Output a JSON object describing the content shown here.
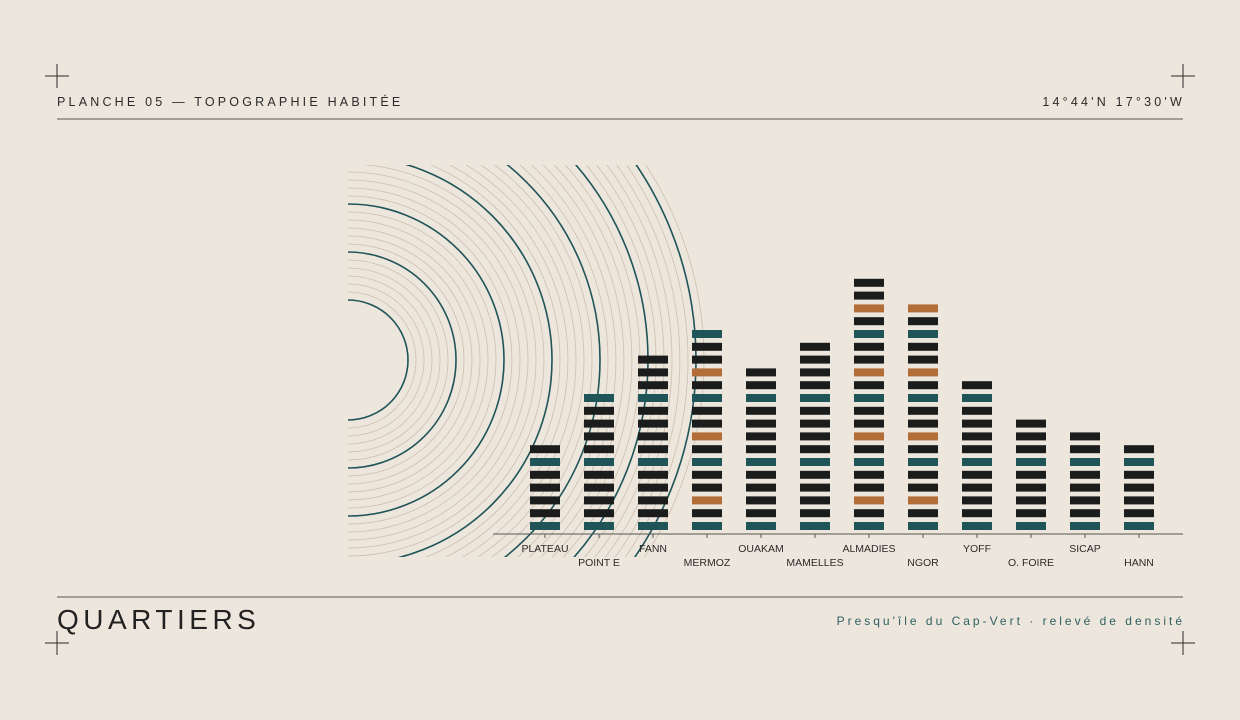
{
  "header": {
    "plate": "PLANCHE 05 — TOPOGRAPHIE HABITÉE",
    "coordinates": "14°44'N  17°30'W"
  },
  "footer": {
    "title": "QUARTIERS",
    "subtitle": "Presqu'île du Cap-Vert · relevé de densité"
  },
  "chart_data": {
    "type": "block-stack",
    "categories": [
      "PLATEAU",
      "POINT E",
      "FANN",
      "MERMOZ",
      "OUAKAM",
      "MAMELLES",
      "ALMADIES",
      "NGOR",
      "YOFF",
      "O. FOIRE",
      "SICAP",
      "HANN"
    ],
    "values": [
      7,
      11,
      14,
      16,
      13,
      15,
      20,
      18,
      12,
      9,
      8,
      7
    ],
    "accented": [
      false,
      false,
      false,
      true,
      false,
      false,
      true,
      true,
      false,
      false,
      false,
      false
    ],
    "color": "#1b1c1c",
    "band_color": "#1f5458",
    "accent_color": "#b36e38"
  }
}
